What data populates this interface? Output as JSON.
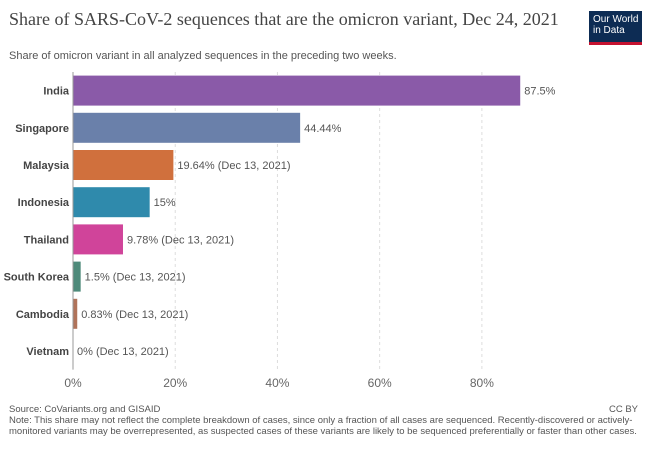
{
  "header": {
    "title": "Share of SARS-CoV-2 sequences that are the omicron variant, Dec 24, 2021",
    "subtitle": "Share of omicron variant in all analyzed sequences in the preceding two weeks.",
    "logo_line1": "Our World",
    "logo_line2": "in Data"
  },
  "footer": {
    "source": "Source: CoVariants.org and GISAID",
    "note": "Note: This share may not reflect the complete breakdown of cases, since only a fraction of all cases are sequenced. Recently-discovered or actively-monitored variants may be overrepresented, as suspected cases of these variants are likely to be sequenced preferentially or faster than other cases.",
    "license": "CC BY"
  },
  "colors": {
    "logo_bg": "#0d2c54",
    "logo_accent": "#c41230"
  },
  "chart_data": {
    "type": "bar",
    "orientation": "horizontal",
    "title": "Share of SARS-CoV-2 sequences that are the omicron variant, Dec 24, 2021",
    "subtitle": "Share of omicron variant in all analyzed sequences in the preceding two weeks.",
    "xlim": [
      0,
      90
    ],
    "x_ticks": [
      {
        "value": 0,
        "label": "0%"
      },
      {
        "value": 20,
        "label": "20%"
      },
      {
        "value": 40,
        "label": "40%"
      },
      {
        "value": 60,
        "label": "60%"
      },
      {
        "value": 80,
        "label": "80%"
      }
    ],
    "grid": "vertical dashed",
    "bars": [
      {
        "category": "India",
        "value": 87.5,
        "label": "87.5%",
        "color": "#8a5aa8"
      },
      {
        "category": "Singapore",
        "value": 44.44,
        "label": "44.44%",
        "color": "#6a80aa"
      },
      {
        "category": "Malaysia",
        "value": 19.64,
        "label": "19.64% (Dec 13, 2021)",
        "color": "#d0703d"
      },
      {
        "category": "Indonesia",
        "value": 15,
        "label": "15%",
        "color": "#2f8aac"
      },
      {
        "category": "Thailand",
        "value": 9.78,
        "label": "9.78% (Dec 13, 2021)",
        "color": "#d0449a"
      },
      {
        "category": "South Korea",
        "value": 1.5,
        "label": "1.5% (Dec 13, 2021)",
        "color": "#4e8a7a"
      },
      {
        "category": "Cambodia",
        "value": 0.83,
        "label": "0.83% (Dec 13, 2021)",
        "color": "#b0735a"
      },
      {
        "category": "Vietnam",
        "value": 0,
        "label": "0% (Dec 13, 2021)",
        "color": "#7a9a6a"
      }
    ]
  }
}
